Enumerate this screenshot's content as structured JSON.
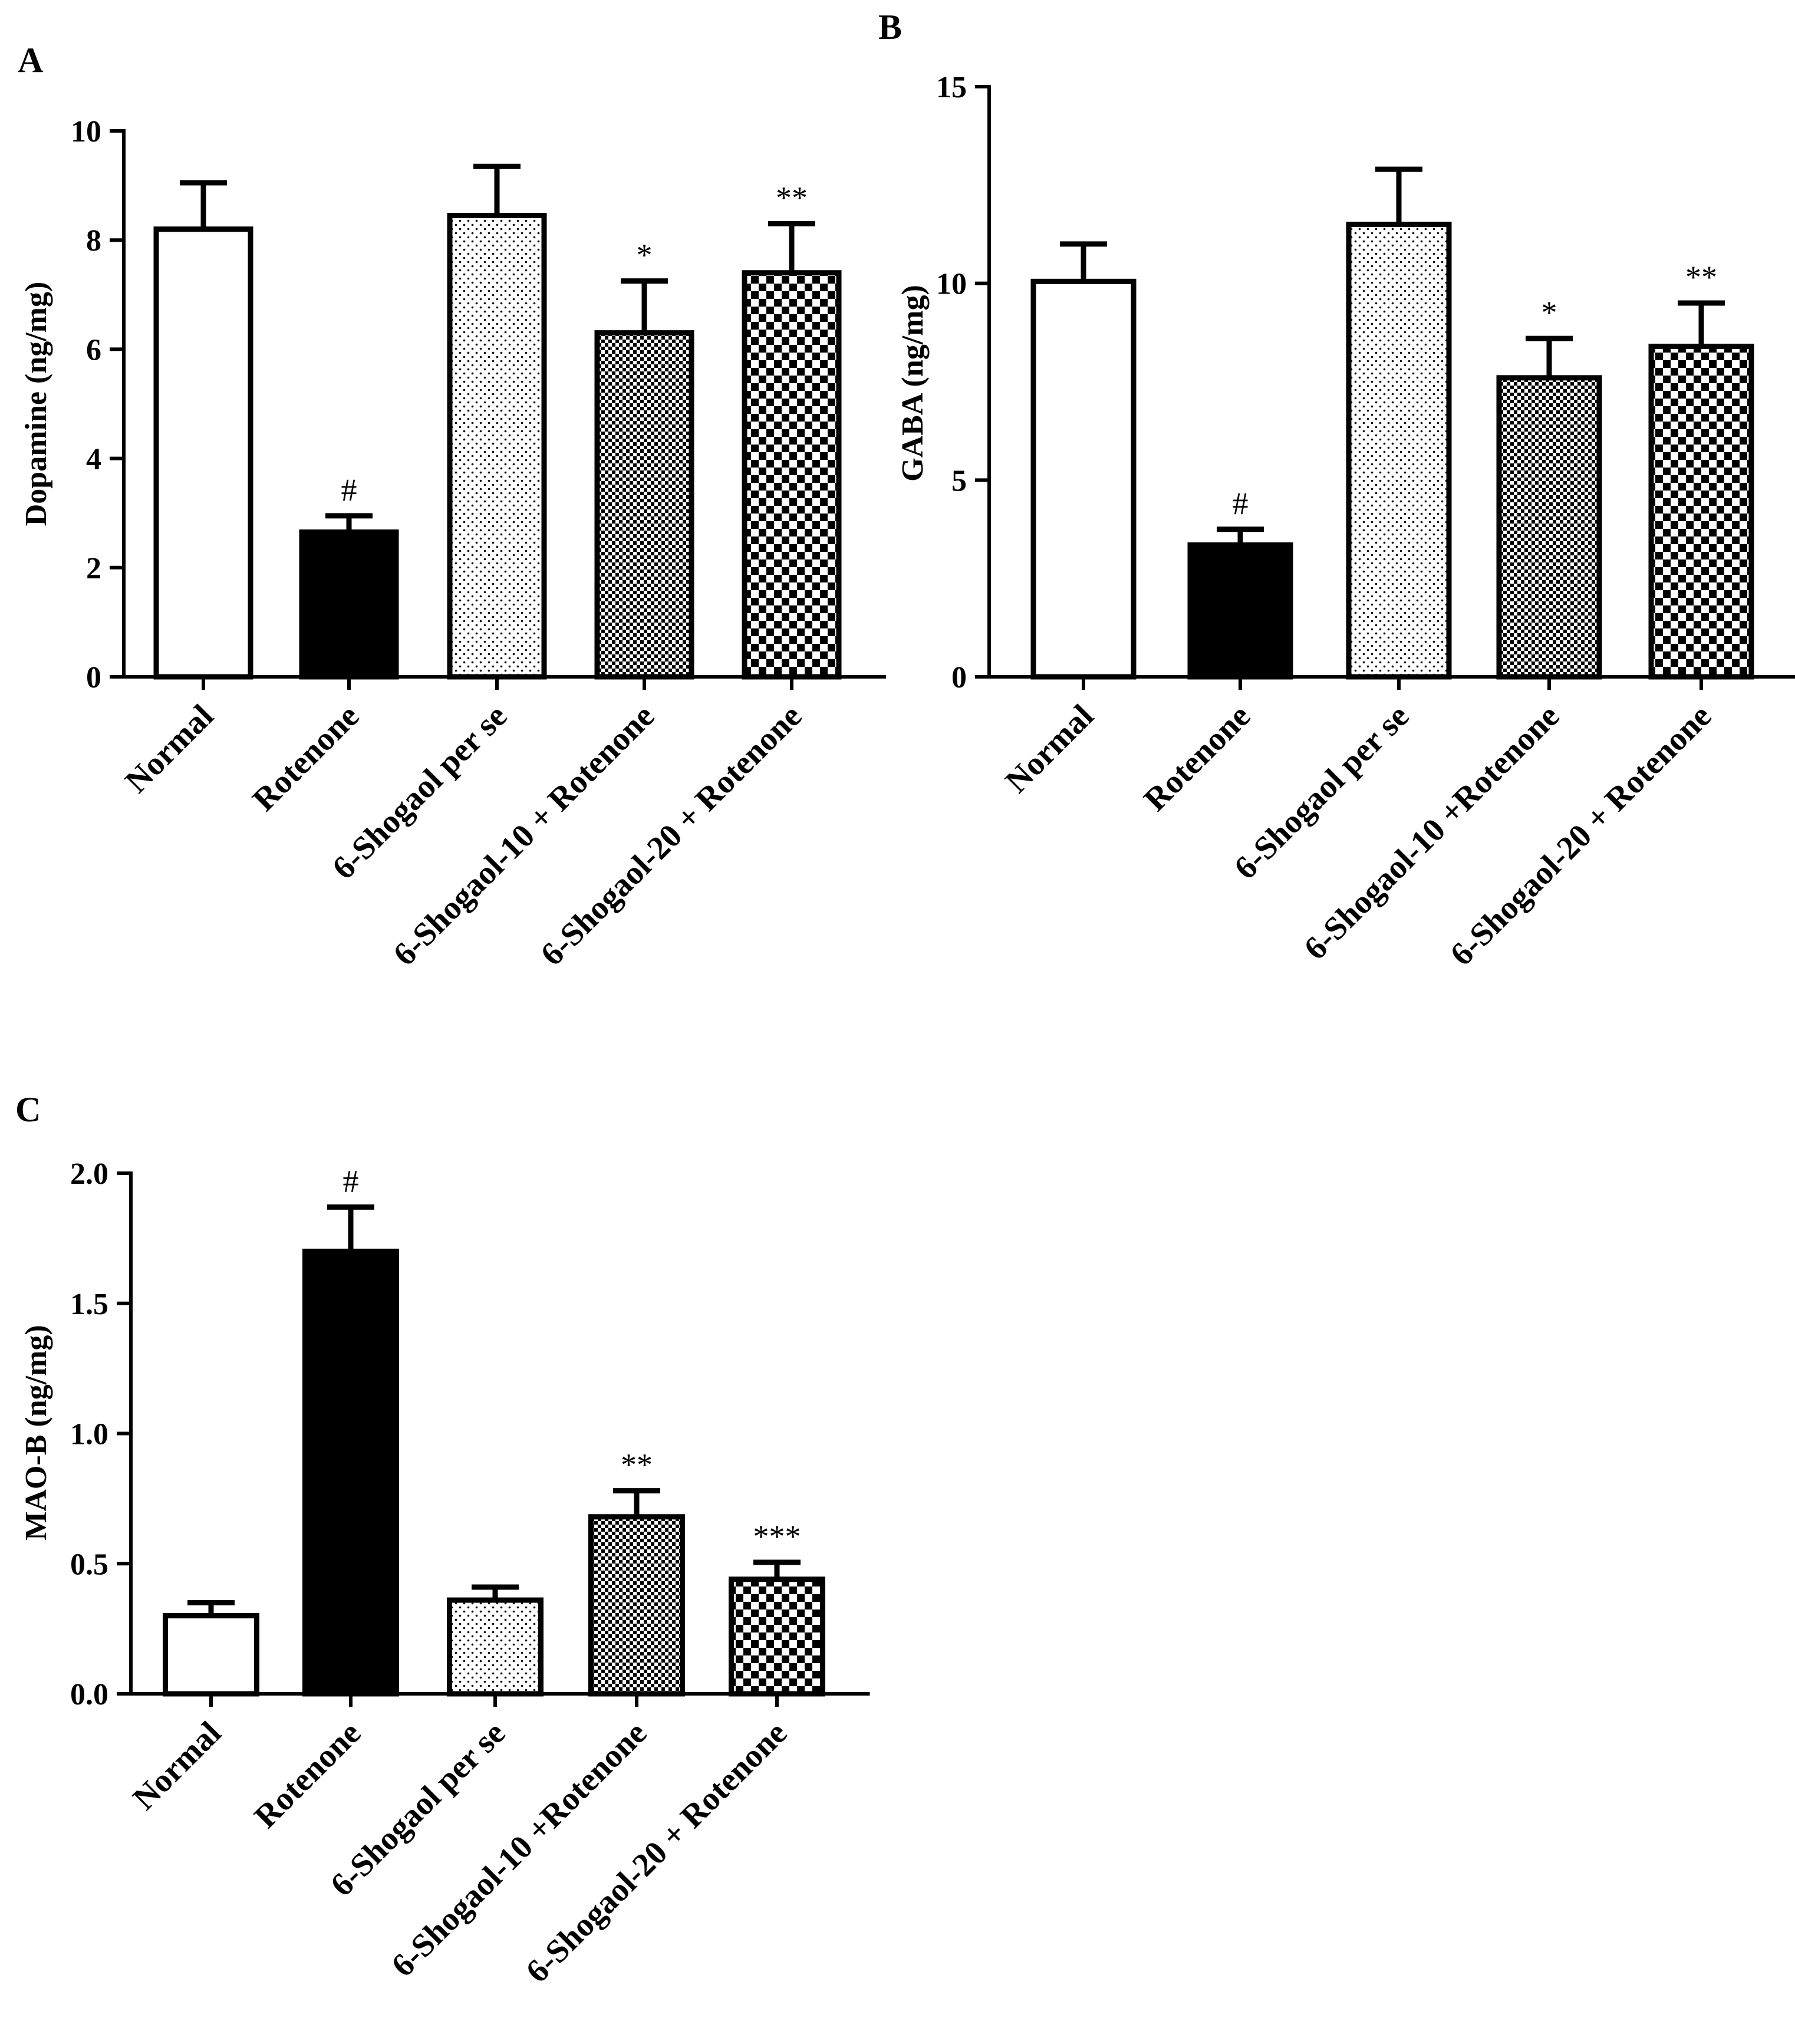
{
  "figure": {
    "panels": [
      "A",
      "B",
      "C"
    ]
  },
  "chart_data": [
    {
      "type": "bar",
      "panel": "A",
      "title": "",
      "xlabel": "",
      "ylabel": "Dopamine (ng/mg)",
      "ylim": [
        0,
        10
      ],
      "yticks": [
        "0",
        "2",
        "4",
        "6",
        "8",
        "10"
      ],
      "categories": [
        "Normal",
        "Rotenone",
        "6-Shogaol per se",
        "6-Shogaol-10 + Rotenone",
        "6-Shogaol-20 + Rotenone"
      ],
      "values": [
        8.2,
        2.65,
        8.45,
        6.3,
        7.4
      ],
      "errors": [
        0.85,
        0.3,
        0.9,
        0.95,
        0.9
      ],
      "significance": [
        "",
        "#",
        "",
        "*",
        "**"
      ],
      "patterns": [
        "white",
        "black",
        "dots",
        "fine-check",
        "coarse-check"
      ]
    },
    {
      "type": "bar",
      "panel": "B",
      "title": "",
      "xlabel": "",
      "ylabel": "GABA (ng/mg)",
      "ylim": [
        0,
        15
      ],
      "yticks": [
        "0",
        "5",
        "10",
        "15"
      ],
      "categories": [
        "Normal",
        "Rotenone",
        "6-Shogaol per se",
        "6-Shogaol-10 +Rotenone",
        "6-Shogaol-20 + Rotenone"
      ],
      "values": [
        10.05,
        3.35,
        11.5,
        7.6,
        8.4
      ],
      "errors": [
        0.95,
        0.4,
        1.4,
        1.0,
        1.1
      ],
      "significance": [
        "",
        "#",
        "",
        "*",
        "**"
      ],
      "patterns": [
        "white",
        "black",
        "dots",
        "fine-check",
        "coarse-check"
      ]
    },
    {
      "type": "bar",
      "panel": "C",
      "title": "",
      "xlabel": "",
      "ylabel": "MAO-B (ng/mg)",
      "ylim": [
        0,
        2
      ],
      "yticks": [
        "0.0",
        "0.5",
        "1.0",
        "1.5",
        "2.0"
      ],
      "categories": [
        "Normal",
        "Rotenone",
        "6-Shogaol per se",
        "6-Shogaol-10 +Rotenone",
        "6-Shogaol-20 + Rotenone"
      ],
      "values": [
        0.3,
        1.7,
        0.36,
        0.68,
        0.44
      ],
      "errors": [
        0.05,
        0.17,
        0.05,
        0.1,
        0.065
      ],
      "significance": [
        "",
        "#",
        "",
        "**",
        "***"
      ],
      "patterns": [
        "white",
        "black",
        "dots",
        "fine-check",
        "coarse-check"
      ]
    }
  ]
}
